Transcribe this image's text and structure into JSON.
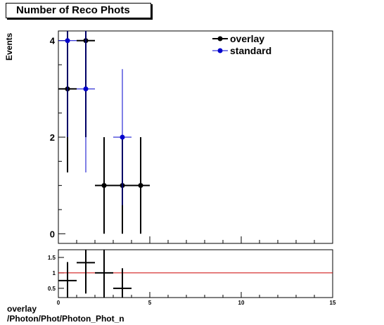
{
  "title": "Number of Reco Phots",
  "footer": {
    "line1": "overlay",
    "line2": "/Photon/Phot/Photon_Phot_n"
  },
  "colors": {
    "overlay": "#000000",
    "standard": "#0000cc",
    "ratio_line": "#cc0000"
  },
  "chart_data": [
    {
      "type": "scatter",
      "ylabel": "Events",
      "xlim": [
        0,
        15
      ],
      "ylim": [
        -0.2,
        4.2
      ],
      "yticks": [
        0,
        2,
        4
      ],
      "legend_position": "top-right",
      "series": [
        {
          "name": "overlay",
          "x": [
            0.5,
            1.5,
            2.5,
            3.5,
            4.5
          ],
          "y": [
            3,
            4,
            1,
            1,
            1
          ],
          "yerr": [
            1.73,
            2.0,
            1.0,
            1.0,
            1.0
          ]
        },
        {
          "name": "standard",
          "x": [
            0.5,
            1.5,
            3.5
          ],
          "y": [
            4,
            3,
            2
          ],
          "yerr": [
            2.0,
            1.73,
            1.41
          ]
        }
      ]
    },
    {
      "type": "scatter",
      "xlim": [
        0,
        15
      ],
      "ylim": [
        0.2,
        1.75
      ],
      "xticks": [
        0,
        5,
        10,
        15
      ],
      "yticks": [
        0.5,
        1,
        1.5
      ],
      "reference_line": 1,
      "series": [
        {
          "x": [
            0.5,
            1.5,
            2.5,
            3.5
          ],
          "y": [
            0.75,
            1.33,
            1.0,
            0.5
          ],
          "yerr": [
            0.6,
            1.0,
            0.8,
            0.65
          ]
        }
      ]
    }
  ]
}
